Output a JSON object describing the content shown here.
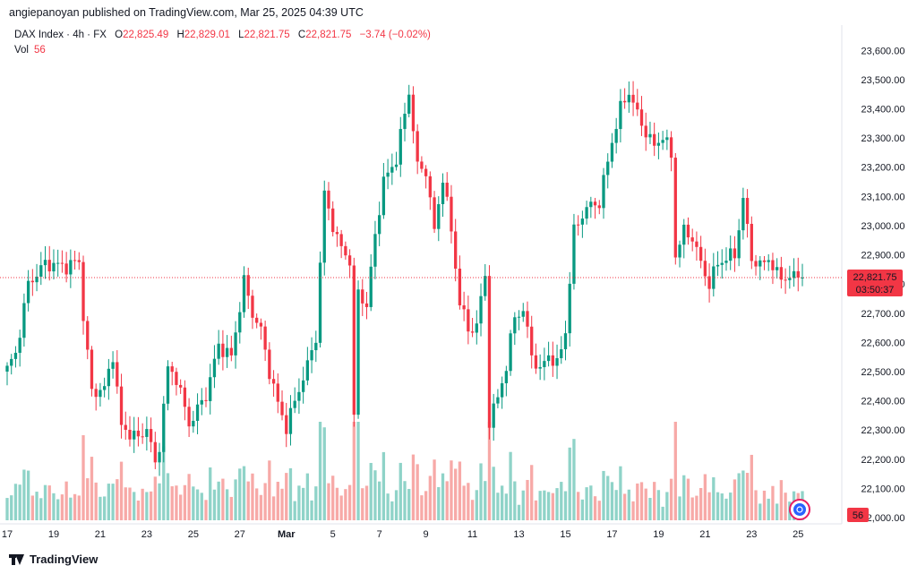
{
  "header": {
    "attribution": "angiepanoyan published on TradingView.com, Mar 25, 2025 04:39 UTC"
  },
  "legend": {
    "symbol": "DAX Index · 4h · FX",
    "open_label": "O",
    "open": "22,825.49",
    "high_label": "H",
    "high": "22,829.01",
    "low_label": "L",
    "low": "22,821.75",
    "close_label": "C",
    "close": "22,821.75",
    "change": "−3.74 (−0.02%)",
    "vol_label": "Vol",
    "vol": "56"
  },
  "footer": {
    "brand": "TradingView"
  },
  "colors": {
    "up": "#089981",
    "down": "#f23645",
    "vol_up": "#8fd3c8",
    "vol_down": "#f7a9a7"
  },
  "chart_data": {
    "type": "candlestick",
    "title": "DAX Index · 4h · FX",
    "ylim": [
      22000,
      23650
    ],
    "y_ticks": [
      "23,600.00",
      "23,500.00",
      "23,400.00",
      "23,300.00",
      "23,200.00",
      "23,100.00",
      "23,000.00",
      "22,900.00",
      "22,800.00",
      "22,700.00",
      "22,600.00",
      "22,500.00",
      "22,400.00",
      "22,300.00",
      "22,200.00",
      "22,100.00",
      "22,000.00"
    ],
    "y_tick_values": [
      23600,
      23500,
      23400,
      23300,
      23200,
      23100,
      23000,
      22900,
      22800,
      22700,
      22600,
      22500,
      22400,
      22300,
      22200,
      22100,
      22000
    ],
    "x_ticks": [
      "17",
      "19",
      "21",
      "23",
      "25",
      "27",
      "Mar",
      "5",
      "7",
      "9",
      "11",
      "13",
      "15",
      "17",
      "19",
      "21",
      "23",
      "25"
    ],
    "x_tick_bars": [
      0,
      11,
      22,
      33,
      44,
      55,
      66,
      77,
      88,
      99,
      110,
      121,
      132,
      143,
      154,
      165,
      176,
      187
    ],
    "bar_count": 189,
    "price_line": {
      "value": 22821.75,
      "label": "22,821.75",
      "countdown": "03:50:37"
    },
    "volume_label": "56",
    "volume_max": 300,
    "anchors": [
      [
        0,
        22510
      ],
      [
        2,
        22560
      ],
      [
        5,
        22800
      ],
      [
        9,
        22870
      ],
      [
        14,
        22860
      ],
      [
        17,
        22880
      ],
      [
        18,
        22690
      ],
      [
        20,
        22430
      ],
      [
        23,
        22440
      ],
      [
        25,
        22560
      ],
      [
        27,
        22310
      ],
      [
        31,
        22270
      ],
      [
        33,
        22310
      ],
      [
        35,
        22180
      ],
      [
        36,
        22250
      ],
      [
        38,
        22510
      ],
      [
        40,
        22480
      ],
      [
        43,
        22320
      ],
      [
        47,
        22420
      ],
      [
        50,
        22590
      ],
      [
        53,
        22550
      ],
      [
        56,
        22810
      ],
      [
        58,
        22700
      ],
      [
        60,
        22640
      ],
      [
        62,
        22500
      ],
      [
        64,
        22390
      ],
      [
        66,
        22310
      ],
      [
        69,
        22440
      ],
      [
        71,
        22520
      ],
      [
        73,
        22620
      ],
      [
        75,
        23110
      ],
      [
        78,
        22950
      ],
      [
        81,
        22880
      ],
      [
        82,
        22330
      ],
      [
        83,
        22780
      ],
      [
        85,
        22720
      ],
      [
        87,
        22970
      ],
      [
        89,
        23150
      ],
      [
        92,
        23230
      ],
      [
        95,
        23460
      ],
      [
        97,
        23200
      ],
      [
        99,
        23190
      ],
      [
        101,
        22980
      ],
      [
        103,
        23170
      ],
      [
        105,
        22980
      ],
      [
        107,
        22740
      ],
      [
        109,
        22640
      ],
      [
        111,
        22660
      ],
      [
        113,
        22830
      ],
      [
        114,
        22330
      ],
      [
        116,
        22410
      ],
      [
        118,
        22520
      ],
      [
        120,
        22690
      ],
      [
        122,
        22710
      ],
      [
        124,
        22560
      ],
      [
        126,
        22500
      ],
      [
        128,
        22560
      ],
      [
        130,
        22520
      ],
      [
        132,
        22640
      ],
      [
        134,
        22980
      ],
      [
        136,
        23040
      ],
      [
        138,
        23070
      ],
      [
        140,
        23080
      ],
      [
        143,
        23290
      ],
      [
        145,
        23400
      ],
      [
        147,
        23460
      ],
      [
        149,
        23380
      ],
      [
        151,
        23320
      ],
      [
        153,
        23270
      ],
      [
        155,
        23310
      ],
      [
        157,
        23240
      ],
      [
        158,
        22900
      ],
      [
        160,
        22980
      ],
      [
        162,
        22960
      ],
      [
        164,
        22870
      ],
      [
        166,
        22800
      ],
      [
        168,
        22870
      ],
      [
        170,
        22890
      ],
      [
        172,
        22900
      ],
      [
        174,
        23090
      ],
      [
        176,
        22890
      ],
      [
        178,
        22860
      ],
      [
        180,
        22890
      ],
      [
        182,
        22830
      ],
      [
        184,
        22822
      ],
      [
        185,
        22822
      ]
    ],
    "data_note": "Close prices at sampled 4h bars (bar index, close) read off the price axis; intermediate bars interpolated."
  }
}
